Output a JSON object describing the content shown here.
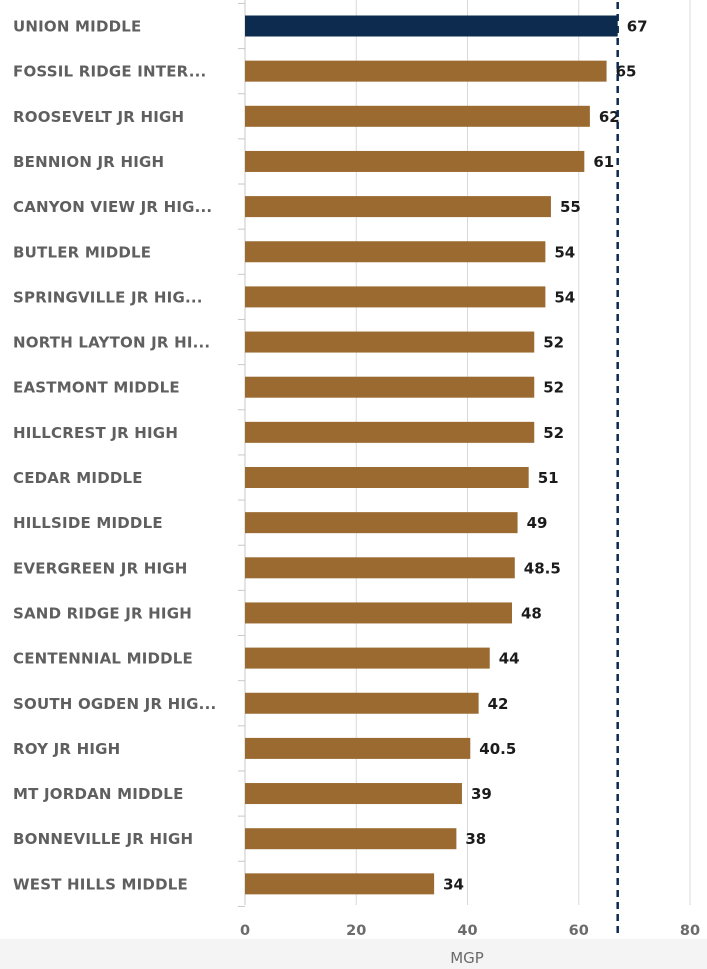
{
  "chart_data": {
    "type": "bar",
    "orientation": "horizontal",
    "categories": [
      "UNION MIDDLE",
      "FOSSIL RIDGE INTER...",
      "ROOSEVELT JR HIGH",
      "BENNION JR HIGH",
      "CANYON VIEW JR HIG...",
      "BUTLER MIDDLE",
      "SPRINGVILLE JR HIG...",
      "NORTH LAYTON JR HI...",
      "EASTMONT MIDDLE",
      "HILLCREST JR HIGH",
      "CEDAR MIDDLE",
      "HILLSIDE MIDDLE",
      "EVERGREEN JR HIGH",
      "SAND RIDGE JR HIGH",
      "CENTENNIAL MIDDLE",
      "SOUTH OGDEN JR HIG...",
      "ROY JR HIGH",
      "MT JORDAN MIDDLE",
      "BONNEVILLE JR HIGH",
      "WEST HILLS MIDDLE"
    ],
    "values": [
      67,
      65,
      62,
      61,
      55,
      54,
      54,
      52,
      52,
      52,
      51,
      49,
      48.5,
      48,
      44,
      42,
      40.5,
      39,
      38,
      34
    ],
    "value_labels": [
      "67",
      "65",
      "62",
      "61",
      "55",
      "54",
      "54",
      "52",
      "52",
      "52",
      "51",
      "49",
      "48.5",
      "48",
      "44",
      "42",
      "40.5",
      "39",
      "38",
      "34"
    ],
    "highlight_index": 0,
    "colors": {
      "highlight": "#0d2a4f",
      "bar": "#9a6a30",
      "reference_line": "#0d2a4f",
      "grid": "#d9d9d9"
    },
    "reference_line_value": 67,
    "reference_line_style": "dashed",
    "xlim": [
      0,
      80
    ],
    "x_ticks": [
      0,
      20,
      40,
      60,
      80
    ],
    "x_tick_labels": [
      "0",
      "20",
      "40",
      "60",
      "80"
    ],
    "xlabel": "MGP",
    "grid": "vertical"
  }
}
